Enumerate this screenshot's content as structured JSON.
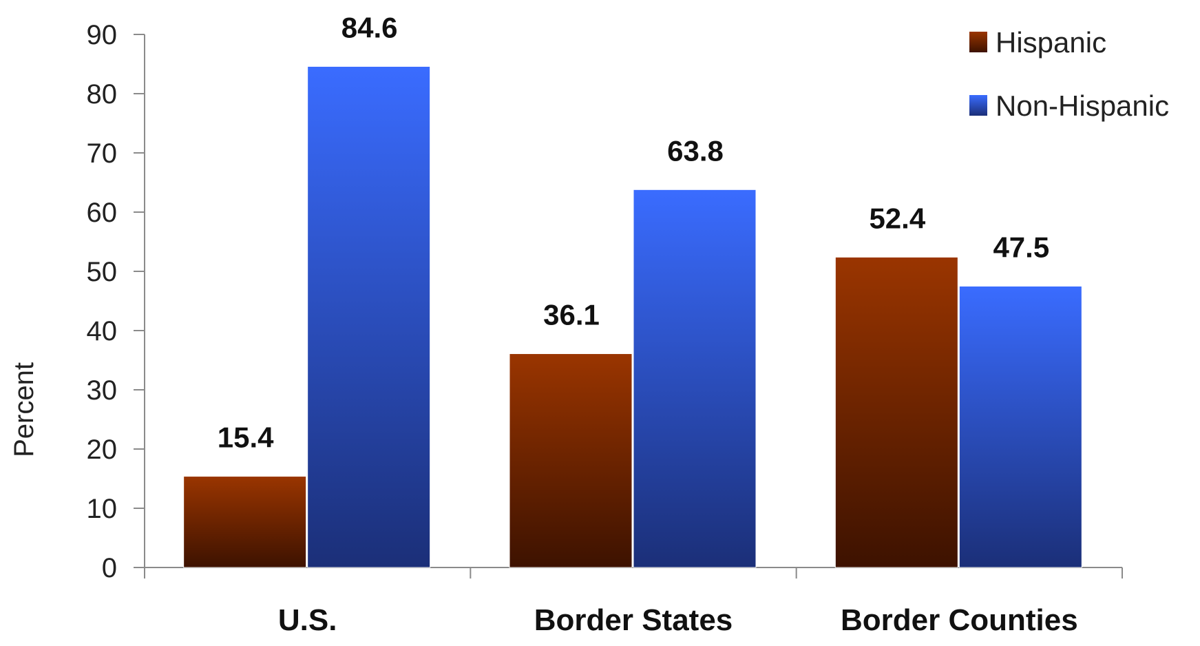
{
  "chart_data": {
    "type": "bar",
    "categories": [
      "U.S.",
      "Border States",
      "Border Counties"
    ],
    "series": [
      {
        "name": "Hispanic",
        "values": [
          15.4,
          36.1,
          52.4
        ],
        "color": "#8b2e00"
      },
      {
        "name": "Non-Hispanic",
        "values": [
          84.6,
          63.8,
          47.5
        ],
        "color": "#2f63e8"
      }
    ],
    "title": "",
    "xlabel": "",
    "ylabel": "Percent",
    "ylim": [
      0,
      90
    ],
    "yticks": [
      0,
      10,
      20,
      30,
      40,
      50,
      60,
      70,
      80,
      90
    ],
    "grid": false,
    "legend_position": "top-right"
  }
}
